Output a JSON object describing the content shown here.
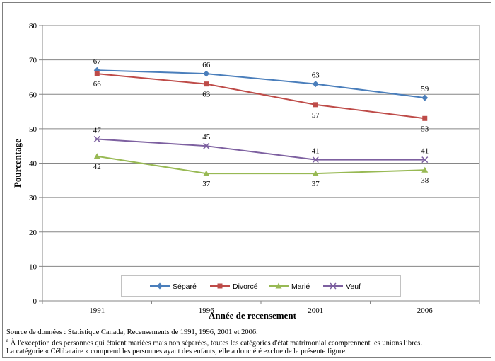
{
  "chart_data": {
    "type": "line",
    "title": "",
    "xlabel": "Année de recensement",
    "ylabel": "Pourcentage",
    "ylim": [
      0,
      80
    ],
    "yticks": [
      0,
      10,
      20,
      30,
      40,
      50,
      60,
      70,
      80
    ],
    "grid": "horizontal",
    "legend_position": "bottom-inside",
    "categories": [
      "1991",
      "1996",
      "2001",
      "2006"
    ],
    "series": [
      {
        "name": "Séparé",
        "values": [
          67,
          66,
          63,
          59
        ],
        "color": "#4a7ebb",
        "marker": "diamond",
        "label_position": "above"
      },
      {
        "name": "Divorcé",
        "values": [
          66,
          63,
          57,
          53
        ],
        "color": "#be4b48",
        "marker": "square",
        "label_position": "below"
      },
      {
        "name": "Marié",
        "values": [
          42,
          37,
          37,
          38
        ],
        "color": "#98b954",
        "marker": "triangle",
        "label_position": "below"
      },
      {
        "name": "Veuf",
        "values": [
          47,
          45,
          41,
          41
        ],
        "color": "#7d60a0",
        "marker": "x",
        "label_position": "above"
      }
    ]
  },
  "notes": {
    "source": "Source de données :  Statistique Canada,  Recensements de 1991, 1996, 2001 et 2006.",
    "footnote_mark": "a",
    "footnote_1": " À l'exception des personnes qui étaient mariées mais non séparées, toutes les catégories d'état matrimonial ccomprennent les unions libres.",
    "footnote_2": "La catégorie « Célibataire » comprend les personnes ayant des enfants; elle a donc été exclue de la présente figure."
  }
}
